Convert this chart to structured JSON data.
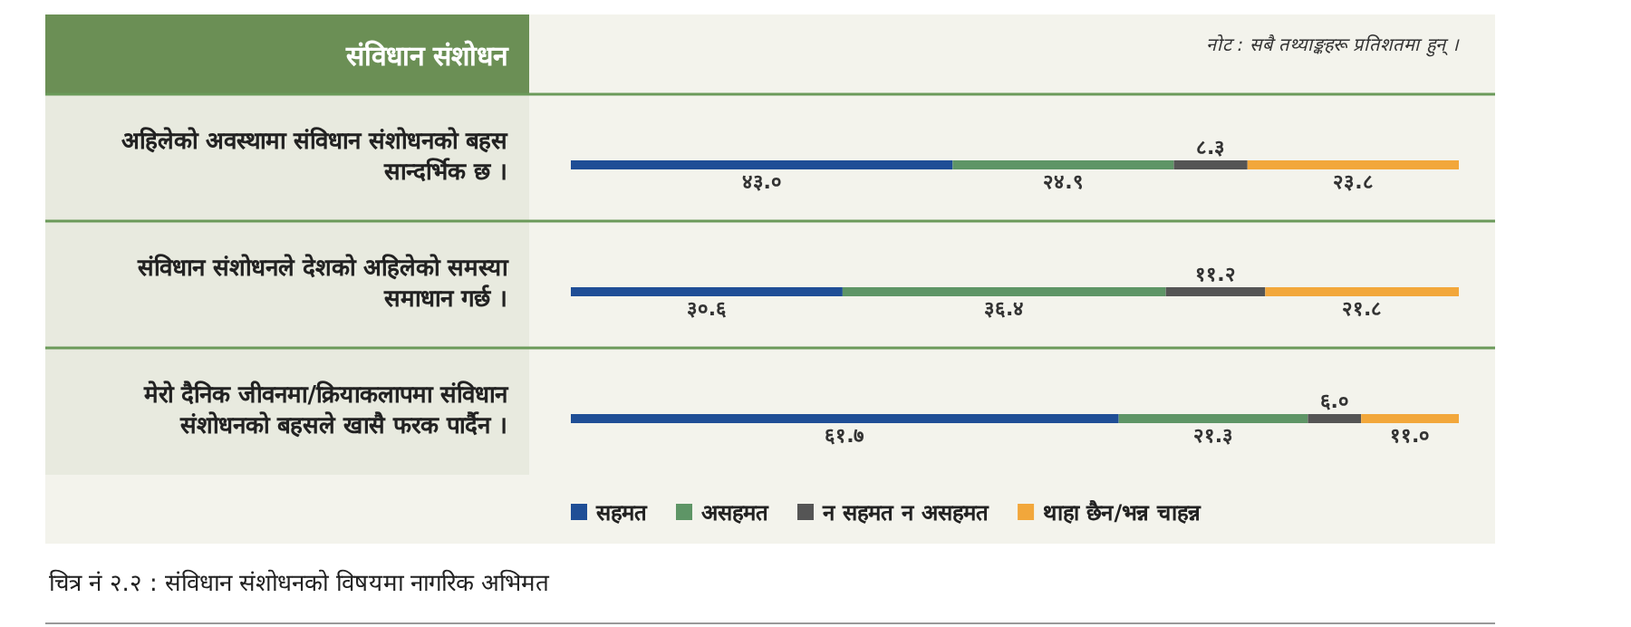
{
  "chart_data": {
    "type": "bar",
    "orientation": "horizontal",
    "stacked": true,
    "title": "संविधान संशोधन",
    "categories": [
      "अहिलेको अवस्थामा संविधान संशोधनको बहस सान्दर्भिक छ ।",
      "संविधान संशोधनले देशको अहिलेको समस्या समाधान गर्छ ।",
      "मेरो दैनिक जीवनमा/क्रियाकलापमा संविधान संशोधनको बहसले खासै फरक पार्दैन ।"
    ],
    "xlim": [
      0,
      100
    ],
    "series": [
      {
        "name": "सहमत",
        "color": "#1f4e96",
        "values": [
          43.0,
          30.6,
          61.7
        ],
        "value_labels": [
          "४३.०",
          "३०.६",
          "६१.७"
        ]
      },
      {
        "name": "असहमत",
        "color": "#5e9566",
        "values": [
          24.9,
          36.4,
          21.3
        ],
        "value_labels": [
          "२४.९",
          "३६.४",
          "२१.३"
        ]
      },
      {
        "name": "न सहमत न असहमत",
        "color": "#555555",
        "values": [
          8.3,
          11.2,
          6.0
        ],
        "value_labels": [
          "८.३",
          "११.२",
          "६.०"
        ]
      },
      {
        "name": "थाहा छैन/भन्न चाहन्न",
        "color": "#f2a73b",
        "values": [
          23.8,
          21.8,
          11.0
        ],
        "value_labels": [
          "२३.८",
          "२१.८",
          "११.०"
        ]
      }
    ],
    "legend": "bottom",
    "annotations": [
      "नोट : सबै तथ्याङ्कहरू प्रतिशतमा हुन् ।",
      "चित्र नं २.२ : संविधान संशोधनको विषयमा नागरिक अभिमत"
    ]
  }
}
